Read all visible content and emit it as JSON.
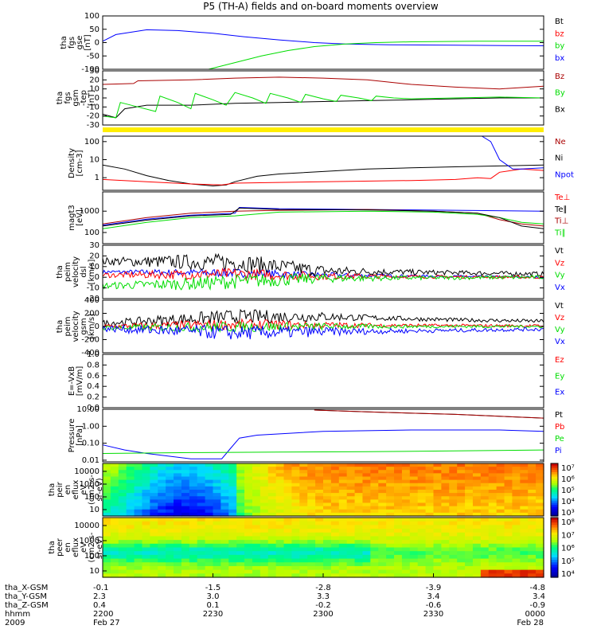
{
  "title": "P5 (TH-A) fields and on-board moments overview",
  "colors": {
    "black": "#000000",
    "red": "#ff0000",
    "darkred": "#aa0000",
    "green": "#00dd00",
    "blue": "#0000ff",
    "yellow": "#ffee00"
  },
  "chart_data": [
    {
      "type": "line",
      "name": "panel-fgs-gse",
      "ylabel": [
        "tha",
        "fgs",
        "gse",
        "[nT]"
      ],
      "ylim": [
        -100,
        100
      ],
      "yticks": [
        "100",
        "50",
        "0",
        "-50",
        "-100"
      ],
      "legend": [
        {
          "label": "Bt",
          "color": "#000000"
        },
        {
          "label": "bz",
          "color": "#ff0000"
        },
        {
          "label": "by",
          "color": "#00dd00"
        },
        {
          "label": "bx",
          "color": "#0000ff"
        }
      ],
      "series": [
        {
          "color": "#0000ff",
          "x": [
            0,
            0.03,
            0.1,
            0.17,
            0.25,
            0.32,
            0.4,
            0.48,
            0.55,
            0.65,
            0.8,
            1
          ],
          "y": [
            5,
            30,
            48,
            45,
            35,
            22,
            10,
            0,
            -5,
            -8,
            -10,
            -12
          ]
        },
        {
          "color": "#00dd00",
          "x": [
            0.24,
            0.3,
            0.36,
            0.42,
            0.48,
            0.55,
            0.62,
            0.7,
            0.85,
            1
          ],
          "y": [
            -100,
            -75,
            -50,
            -30,
            -15,
            -5,
            0,
            3,
            5,
            5
          ]
        }
      ]
    },
    {
      "type": "line",
      "name": "panel-fgs-gsm",
      "ylabel": [
        "tha",
        "fgs",
        "gsm",
        "-tep",
        "[nT]"
      ],
      "ylim": [
        -30,
        30
      ],
      "yticks": [
        "30",
        "20",
        "10",
        "0",
        "-10",
        "-20",
        "-30"
      ],
      "legend": [
        {
          "label": "Bz",
          "color": "#aa0000"
        },
        {
          "label": "By",
          "color": "#00dd00"
        },
        {
          "label": "Bx",
          "color": "#000000"
        }
      ],
      "series": [
        {
          "color": "#aa0000",
          "x": [
            0,
            0.07,
            0.08,
            0.2,
            0.3,
            0.4,
            0.5,
            0.6,
            0.7,
            0.8,
            0.9,
            1
          ],
          "y": [
            15,
            16,
            19,
            20,
            22,
            23,
            22,
            20,
            15,
            12,
            10,
            13
          ]
        },
        {
          "color": "#000000",
          "x": [
            0,
            0.03,
            0.05,
            0.1,
            0.2,
            0.3,
            0.4,
            0.5,
            0.6,
            0.7,
            0.8,
            0.9,
            1
          ],
          "y": [
            -18,
            -22,
            -12,
            -8,
            -8,
            -6,
            -5,
            -4,
            -3,
            -2,
            -1,
            0,
            0
          ]
        },
        {
          "color": "#00dd00",
          "x": [
            0,
            0.03,
            0.04,
            0.08,
            0.12,
            0.13,
            0.17,
            0.2,
            0.21,
            0.25,
            0.28,
            0.3,
            0.34,
            0.37,
            0.38,
            0.42,
            0.45,
            0.46,
            0.5,
            0.53,
            0.54,
            0.58,
            0.61,
            0.62,
            0.66,
            0.7,
            0.8,
            0.9,
            1
          ],
          "y": [
            -20,
            -22,
            -5,
            -10,
            -15,
            2,
            -5,
            -12,
            5,
            -2,
            -8,
            6,
            0,
            -6,
            5,
            0,
            -5,
            4,
            -1,
            -4,
            3,
            0,
            -3,
            2,
            0,
            -1,
            0,
            1,
            0
          ]
        }
      ]
    },
    {
      "type": "line",
      "name": "panel-density",
      "log": true,
      "ylabel": [
        "Density",
        "[cm-3]"
      ],
      "ylim": [
        0.2,
        200
      ],
      "yticks": [
        "100",
        "10",
        "1"
      ],
      "legend": [
        {
          "label": "Ne",
          "color": "#aa0000"
        },
        {
          "label": "Ni",
          "color": "#000000"
        },
        {
          "label": "Npot",
          "color": "#0000ff"
        }
      ],
      "series": [
        {
          "color": "#000000",
          "x": [
            0,
            0.05,
            0.1,
            0.15,
            0.2,
            0.25,
            0.28,
            0.3,
            0.35,
            0.4,
            0.5,
            0.6,
            0.7,
            0.8,
            0.9,
            1
          ],
          "y": [
            5,
            3,
            1.3,
            0.7,
            0.45,
            0.35,
            0.4,
            0.6,
            1.2,
            1.6,
            2.2,
            3,
            3.5,
            4,
            4.5,
            5
          ]
        },
        {
          "color": "#ff0000",
          "x": [
            0,
            0.1,
            0.2,
            0.27,
            0.3,
            0.5,
            0.7,
            0.8,
            0.85,
            0.88,
            0.9,
            0.95,
            1
          ],
          "y": [
            0.8,
            0.6,
            0.45,
            0.4,
            0.5,
            0.6,
            0.7,
            0.8,
            1,
            0.9,
            2,
            3,
            2.5
          ]
        },
        {
          "color": "#0000ff",
          "x": [
            0.86,
            0.88,
            0.9,
            0.93,
            0.95,
            1
          ],
          "y": [
            200,
            100,
            10,
            3,
            3,
            3.5
          ]
        }
      ]
    },
    {
      "type": "line",
      "name": "panel-temperature",
      "log": true,
      "ylabel": [
        "magt3",
        "[eV]"
      ],
      "ylim": [
        30,
        8000
      ],
      "yticks": [
        "1000",
        "100"
      ],
      "legend": [
        {
          "label": "Te⊥",
          "color": "#ff0000"
        },
        {
          "label": "Te∥",
          "color": "#000000"
        },
        {
          "label": "Ti⊥",
          "color": "#aa0000"
        },
        {
          "label": "Ti∥",
          "color": "#00dd00"
        }
      ],
      "series": [
        {
          "color": "#0000ff",
          "x": [
            0,
            0.1,
            0.2,
            0.3,
            0.31,
            0.4,
            0.6,
            0.8,
            1
          ],
          "y": [
            220,
            420,
            650,
            800,
            1500,
            1300,
            1200,
            1100,
            1000
          ]
        },
        {
          "color": "#aa0000",
          "x": [
            0,
            0.1,
            0.2,
            0.3,
            0.4,
            0.6,
            0.75,
            0.85,
            0.9,
            0.95,
            1
          ],
          "y": [
            250,
            500,
            800,
            1000,
            1100,
            1200,
            1000,
            800,
            400,
            250,
            200
          ]
        },
        {
          "color": "#00dd00",
          "x": [
            0,
            0.1,
            0.2,
            0.3,
            0.4,
            0.6,
            0.75,
            0.85,
            0.9,
            0.95,
            1
          ],
          "y": [
            150,
            300,
            500,
            600,
            900,
            1000,
            900,
            700,
            500,
            300,
            250
          ]
        },
        {
          "color": "#000000",
          "x": [
            0,
            0.1,
            0.2,
            0.29,
            0.31,
            0.4,
            0.6,
            0.75,
            0.85,
            0.9,
            0.95,
            1
          ],
          "y": [
            200,
            380,
            600,
            700,
            1400,
            1200,
            1150,
            1000,
            800,
            500,
            200,
            150
          ]
        }
      ]
    },
    {
      "type": "line",
      "name": "panel-peim-velocity",
      "noisy": true,
      "ylabel": [
        "tha",
        "peim",
        "velocity",
        "dsl",
        "[km/s]"
      ],
      "ylim": [
        -20,
        30
      ],
      "yticks": [
        "30",
        "20",
        "10",
        "0",
        "-10",
        "-20"
      ],
      "legend": [
        {
          "label": "Vt",
          "color": "#000000"
        },
        {
          "label": "Vz",
          "color": "#ff0000"
        },
        {
          "label": "Vy",
          "color": "#00dd00"
        },
        {
          "label": "Vx",
          "color": "#0000ff"
        }
      ],
      "series": [
        {
          "color": "#0000ff",
          "x": [
            0,
            0.3,
            0.5,
            1
          ],
          "y": [
            5,
            4,
            2,
            0
          ],
          "amp": 3
        },
        {
          "color": "#000000",
          "x": [
            0,
            0.3,
            0.5,
            1
          ],
          "y": [
            15,
            14,
            6,
            3
          ],
          "amp": 6
        },
        {
          "color": "#ff0000",
          "x": [
            0,
            0.3,
            0.5,
            1
          ],
          "y": [
            2,
            3,
            1,
            0
          ],
          "amp": 4
        },
        {
          "color": "#00dd00",
          "x": [
            0,
            0.2,
            0.3,
            0.5,
            1
          ],
          "y": [
            -8,
            -6,
            -4,
            -1,
            0
          ],
          "amp": 5
        }
      ]
    },
    {
      "type": "line",
      "name": "panel-peim-velocity-gsm",
      "noisy": true,
      "ylabel": [
        "tha",
        "peim",
        "velocity",
        "gsm",
        "[km/s]"
      ],
      "ylim": [
        -400,
        400
      ],
      "yticks": [
        "400",
        "200",
        "0",
        "-200",
        "-400"
      ],
      "legend": [
        {
          "label": "Vt",
          "color": "#000000"
        },
        {
          "label": "Vz",
          "color": "#ff0000"
        },
        {
          "label": "Vy",
          "color": "#00dd00"
        },
        {
          "label": "Vx",
          "color": "#0000ff"
        }
      ],
      "series": [
        {
          "color": "#000000",
          "x": [
            0,
            0.3,
            0.5,
            0.8,
            1
          ],
          "y": [
            50,
            150,
            150,
            100,
            80
          ],
          "amp": 80
        },
        {
          "color": "#ff0000",
          "x": [
            0,
            0.3,
            0.5,
            1
          ],
          "y": [
            0,
            30,
            20,
            10
          ],
          "amp": 60
        },
        {
          "color": "#00dd00",
          "x": [
            0,
            0.5,
            1
          ],
          "y": [
            -20,
            0,
            0
          ],
          "amp": 60
        },
        {
          "color": "#0000ff",
          "x": [
            0,
            0.3,
            0.5,
            0.8,
            1
          ],
          "y": [
            -30,
            -100,
            -80,
            -60,
            -40
          ],
          "amp": 80
        }
      ]
    },
    {
      "type": "line",
      "name": "panel-electric-field",
      "ylabel": [
        "E=-VxB",
        "[mV/m]"
      ],
      "ylim": [
        0,
        1
      ],
      "yticks": [
        "1.0",
        "0.8",
        "0.6",
        "0.4",
        "0.2",
        "0.0"
      ],
      "legend": [
        {
          "label": "Ez",
          "color": "#ff0000"
        },
        {
          "label": "Ey",
          "color": "#00dd00"
        },
        {
          "label": "Ex",
          "color": "#0000ff"
        }
      ],
      "series": []
    },
    {
      "type": "line",
      "name": "panel-pressure",
      "log": true,
      "ylabel": [
        "Pressure",
        "[nPa]"
      ],
      "ylim": [
        0.008,
        10
      ],
      "yticks": [
        "10.00",
        "1.00",
        "0.10",
        "0.01"
      ],
      "legend": [
        {
          "label": "Pt",
          "color": "#000000"
        },
        {
          "label": "Pb",
          "color": "#ff0000"
        },
        {
          "label": "Pe",
          "color": "#00dd00"
        },
        {
          "label": "Pi",
          "color": "#0000ff"
        }
      ],
      "series": [
        {
          "color": "#0000ff",
          "x": [
            0,
            0.05,
            0.1,
            0.2,
            0.27,
            0.29,
            0.31,
            0.35,
            0.5,
            0.7,
            0.9,
            1
          ],
          "y": [
            0.08,
            0.04,
            0.025,
            0.012,
            0.012,
            0.05,
            0.2,
            0.3,
            0.5,
            0.6,
            0.6,
            0.5
          ]
        },
        {
          "color": "#00dd00",
          "x": [
            0,
            0.2,
            0.4,
            0.6,
            0.8,
            1
          ],
          "y": [
            0.025,
            0.028,
            0.03,
            0.032,
            0.035,
            0.04
          ]
        },
        {
          "color": "#000000",
          "x": [
            0.48,
            0.6,
            0.8,
            1
          ],
          "y": [
            9,
            7,
            5,
            3
          ]
        },
        {
          "color": "#aa0000",
          "x": [
            0.48,
            0.6,
            0.8,
            1
          ],
          "y": [
            9,
            7,
            5,
            3
          ]
        }
      ]
    },
    {
      "type": "heatmap",
      "name": "panel-peir-spectrogram",
      "ylabel": [
        "tha",
        "peir",
        "en",
        "eflux",
        "eV",
        "(cm2-s-",
        "sr-eV)"
      ],
      "yticks": [
        "10000",
        "1000",
        "100",
        "10"
      ],
      "colorbar_ticks": [
        "10⁷",
        "10⁶",
        "10⁵",
        "10⁴",
        "10³"
      ]
    },
    {
      "type": "heatmap",
      "name": "panel-peer-spectrogram",
      "ylabel": [
        "tha",
        "peer",
        "en",
        "eflux",
        "eV",
        "(cm2-s-",
        "sr-eV)"
      ],
      "yticks": [
        "10000",
        "1000",
        "100",
        "10"
      ],
      "colorbar_ticks": [
        "10⁸",
        "10⁷",
        "10⁶",
        "10⁵",
        "10⁴"
      ]
    }
  ],
  "xaxis": {
    "rows": [
      {
        "label": "tha_X-GSM",
        "values": [
          "-0.1",
          "-1.5",
          "-2.8",
          "-3.9",
          "-4.8"
        ]
      },
      {
        "label": "tha_Y-GSM",
        "values": [
          "2.3",
          "3.0",
          "3.3",
          "3.4",
          "3.4"
        ]
      },
      {
        "label": "tha_Z-GSM",
        "values": [
          "0.4",
          "0.1",
          "-0.2",
          "-0.6",
          "-0.9"
        ]
      },
      {
        "label": "hhmm",
        "values": [
          "2200",
          "2230",
          "2300",
          "2330",
          "0000"
        ]
      }
    ],
    "year": "2009",
    "dates": [
      "Feb 27",
      "Feb 28"
    ]
  }
}
